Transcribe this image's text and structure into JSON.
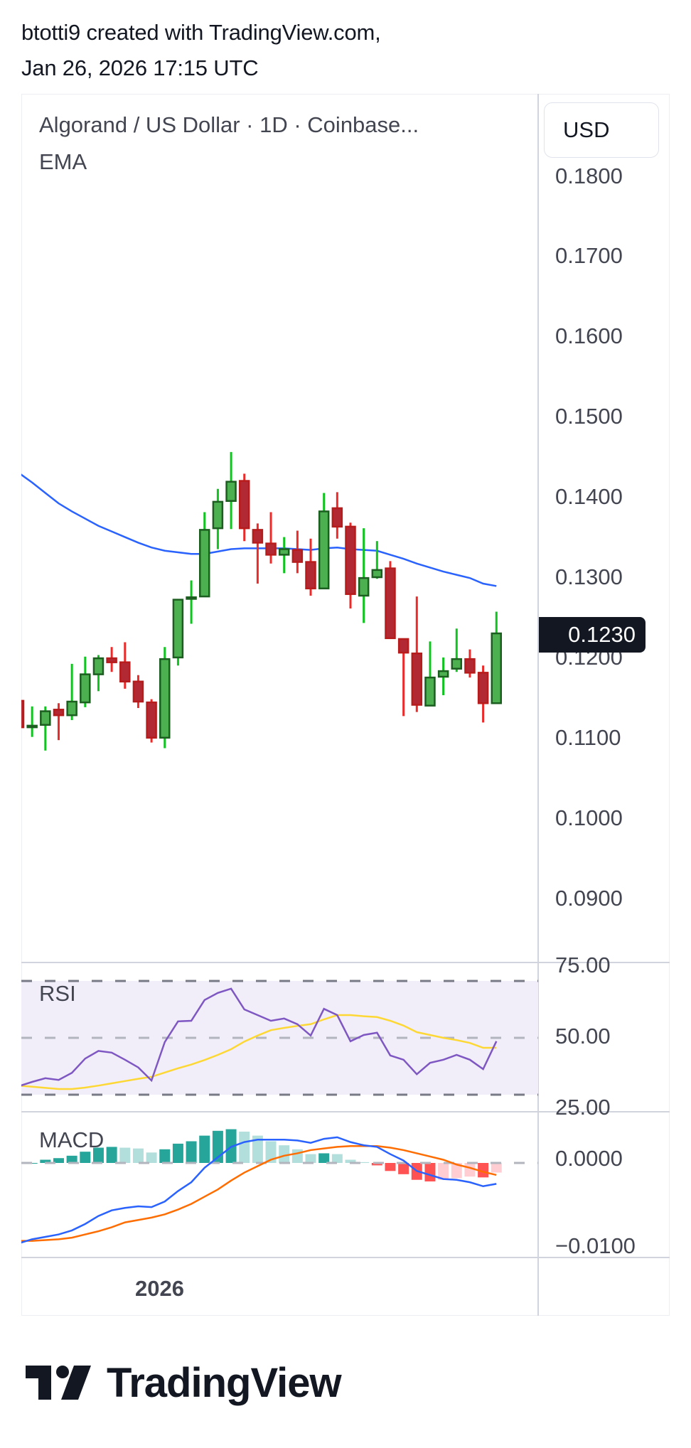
{
  "header": {
    "line1": "btotti9 created with TradingView.com,",
    "line2": "Jan 26, 2026 17:15 UTC"
  },
  "legend": {
    "symbol": "Algorand / US Dollar · 1D · Coinbase...",
    "indicator": "EMA"
  },
  "currency_button": "USD",
  "rsi_label": "RSI",
  "macd_label": "MACD",
  "time_axis": {
    "labels": [
      "2026"
    ]
  },
  "logo_text": "TradingView",
  "colors": {
    "up_body": "#4caf50",
    "up_border": "#1b5e20",
    "up_wick": "#0fc41f",
    "down_body": "#b22833",
    "down_border": "#b71c1c",
    "down_wick": "#ec2a2a",
    "ema": "#2962ff",
    "rsi": "#7e57c2",
    "rsi_ma": "#fdd835",
    "rsi_band": "#f1eef9",
    "macd": "#2962ff",
    "signal": "#ff6d00",
    "hist_up_strong": "#26a69a",
    "hist_up_weak": "#b2dfdb",
    "hist_down_strong": "#ff5252",
    "hist_down_weak": "#ffcdd2",
    "price_tag": "#131722"
  },
  "chart_data": [
    {
      "type": "candlestick",
      "title": "Algorand / US Dollar · 1D · Coinbase",
      "ylim": [
        0.0868,
        0.19
      ],
      "y_ticks": [
        "0.1800",
        "0.1700",
        "0.1600",
        "0.1500",
        "0.1400",
        "0.1300",
        "0.1200",
        "0.1100",
        "0.1000",
        "0.0900"
      ],
      "y_tick_values": [
        0.18,
        0.17,
        0.16,
        0.15,
        0.14,
        0.13,
        0.12,
        0.11,
        0.1,
        0.09
      ],
      "last_price": "0.1230",
      "last_price_value": 0.123,
      "ohlc": [
        [
          0.1146,
          0.115,
          0.111,
          0.1113
        ],
        [
          0.1113,
          0.1139,
          0.1101,
          0.1115
        ],
        [
          0.1116,
          0.1139,
          0.1084,
          0.1133
        ],
        [
          0.1135,
          0.1143,
          0.1097,
          0.1128
        ],
        [
          0.1128,
          0.1192,
          0.1122,
          0.1145
        ],
        [
          0.1144,
          0.1201,
          0.1138,
          0.1179
        ],
        [
          0.1179,
          0.1203,
          0.1158,
          0.1199
        ],
        [
          0.1199,
          0.1213,
          0.1182,
          0.1194
        ],
        [
          0.1194,
          0.1219,
          0.1161,
          0.117
        ],
        [
          0.117,
          0.1178,
          0.1137,
          0.1145
        ],
        [
          0.1144,
          0.1148,
          0.1094,
          0.11
        ],
        [
          0.11,
          0.1213,
          0.1087,
          0.1198
        ],
        [
          0.12,
          0.1272,
          0.119,
          0.1272
        ],
        [
          0.1273,
          0.1296,
          0.1242,
          0.1275
        ],
        [
          0.1276,
          0.1381,
          0.1276,
          0.1359
        ],
        [
          0.1361,
          0.141,
          0.1335,
          0.1394
        ],
        [
          0.1395,
          0.1456,
          0.136,
          0.1419
        ],
        [
          0.142,
          0.1429,
          0.1345,
          0.1361
        ],
        [
          0.1359,
          0.1367,
          0.1292,
          0.1343
        ],
        [
          0.1342,
          0.1381,
          0.1317,
          0.1328
        ],
        [
          0.1328,
          0.135,
          0.1305,
          0.1335
        ],
        [
          0.1334,
          0.1358,
          0.1305,
          0.1319
        ],
        [
          0.1319,
          0.1348,
          0.1277,
          0.1286
        ],
        [
          0.1286,
          0.1405,
          0.1286,
          0.1382
        ],
        [
          0.1386,
          0.1406,
          0.1348,
          0.1363
        ],
        [
          0.1363,
          0.1368,
          0.1261,
          0.1279
        ],
        [
          0.1277,
          0.1361,
          0.1243,
          0.1299
        ],
        [
          0.13,
          0.1345,
          0.1298,
          0.1309
        ],
        [
          0.1311,
          0.132,
          0.1224,
          0.1224
        ],
        [
          0.1223,
          0.1223,
          0.1127,
          0.1206
        ],
        [
          0.1205,
          0.1276,
          0.1132,
          0.1141
        ],
        [
          0.114,
          0.122,
          0.114,
          0.1175
        ],
        [
          0.1176,
          0.12,
          0.1153,
          0.1183
        ],
        [
          0.1186,
          0.1236,
          0.1182,
          0.1198
        ],
        [
          0.1198,
          0.121,
          0.1175,
          0.1181
        ],
        [
          0.1181,
          0.119,
          0.1119,
          0.1143
        ],
        [
          0.1143,
          0.1257,
          0.1143,
          0.123
        ]
      ],
      "ema": [
        0.143,
        0.1418,
        0.1405,
        0.1392,
        0.1382,
        0.1373,
        0.1364,
        0.1357,
        0.135,
        0.1343,
        0.1337,
        0.1333,
        0.1331,
        0.1329,
        0.1329,
        0.1332,
        0.1335,
        0.1336,
        0.1336,
        0.1336,
        0.1336,
        0.1335,
        0.1334,
        0.1336,
        0.1337,
        0.1335,
        0.1334,
        0.1333,
        0.1328,
        0.1323,
        0.1317,
        0.1312,
        0.1307,
        0.1303,
        0.1299,
        0.1292,
        0.1289
      ]
    },
    {
      "type": "line",
      "title": "RSI",
      "ylim": [
        25,
        75
      ],
      "y_ticks": [
        "75.00",
        "50.00",
        "25.00"
      ],
      "y_tick_values": [
        75,
        50,
        25
      ],
      "bands": [
        70,
        50,
        30
      ],
      "series": [
        {
          "name": "RSI",
          "values": [
            33,
            34.5,
            35.8,
            35.2,
            37.7,
            42.7,
            45.4,
            44.8,
            42.3,
            39.6,
            35,
            48.5,
            55.8,
            56,
            63.3,
            65.8,
            67.3,
            60,
            58,
            56,
            56.8,
            54.8,
            50.8,
            60.2,
            58,
            48.8,
            51,
            51.8,
            43.8,
            42.3,
            37.2,
            41.2,
            42.3,
            44,
            42.3,
            39,
            48.8
          ]
        },
        {
          "name": "RSI-based MA",
          "values": [
            33.2,
            32.8,
            32.4,
            32,
            32,
            32.5,
            33.2,
            34,
            34.8,
            35.6,
            36.3,
            37.8,
            39.3,
            40.6,
            42.2,
            44,
            46,
            48.7,
            50.8,
            52.7,
            53.5,
            54.2,
            54.8,
            56.5,
            58,
            58,
            57.6,
            57.3,
            56,
            54.3,
            52,
            51,
            50,
            49.2,
            48.2,
            46.5,
            46.5
          ]
        }
      ]
    },
    {
      "type": "line+bar",
      "title": "MACD",
      "y_ticks": [
        "0.0000",
        "−0.0100"
      ],
      "y_tick_values": [
        0,
        -0.01
      ],
      "series": [
        {
          "name": "MACD",
          "values": [
            -0.01,
            -0.0095,
            -0.0092,
            -0.0089,
            -0.0084,
            -0.0076,
            -0.0066,
            -0.0059,
            -0.0056,
            -0.0054,
            -0.0055,
            -0.0048,
            -0.0035,
            -0.0024,
            -0.0006,
            0.0007,
            0.002,
            0.0026,
            0.0029,
            0.0029,
            0.0029,
            0.0028,
            0.0025,
            0.003,
            0.0032,
            0.0026,
            0.0022,
            0.002,
            0.0011,
            0.0003,
            -0.001,
            -0.0015,
            -0.002,
            -0.0021,
            -0.0024,
            -0.0029,
            -0.0026
          ]
        },
        {
          "name": "Signal",
          "values": [
            -0.0097,
            -0.0097,
            -0.0096,
            -0.0095,
            -0.0093,
            -0.0089,
            -0.0085,
            -0.008,
            -0.0074,
            -0.0071,
            -0.0068,
            -0.0064,
            -0.0058,
            -0.0051,
            -0.0042,
            -0.0033,
            -0.0022,
            -0.0012,
            -0.0004,
            0.0004,
            0.0009,
            0.0012,
            0.0016,
            0.0018,
            0.002,
            0.0021,
            0.0021,
            0.0021,
            0.0019,
            0.0016,
            0.0012,
            0.0008,
            0.0004,
            -0.0002,
            -0.0006,
            -0.0011,
            -0.0015
          ]
        },
        {
          "name": "Histogram",
          "values": [
            -0.0001,
            0,
            0.0004,
            0.0006,
            0.0009,
            0.0014,
            0.0019,
            0.002,
            0.0019,
            0.0018,
            0.0013,
            0.0017,
            0.0024,
            0.0027,
            0.0034,
            0.004,
            0.0042,
            0.0039,
            0.0034,
            0.0027,
            0.0022,
            0.0017,
            0.0011,
            0.0012,
            0.0011,
            0.0004,
            0.0001,
            -0.0003,
            -0.001,
            -0.0014,
            -0.0021,
            -0.0023,
            -0.0021,
            -0.0019,
            -0.0017,
            -0.0018,
            -0.0012
          ]
        }
      ]
    }
  ]
}
